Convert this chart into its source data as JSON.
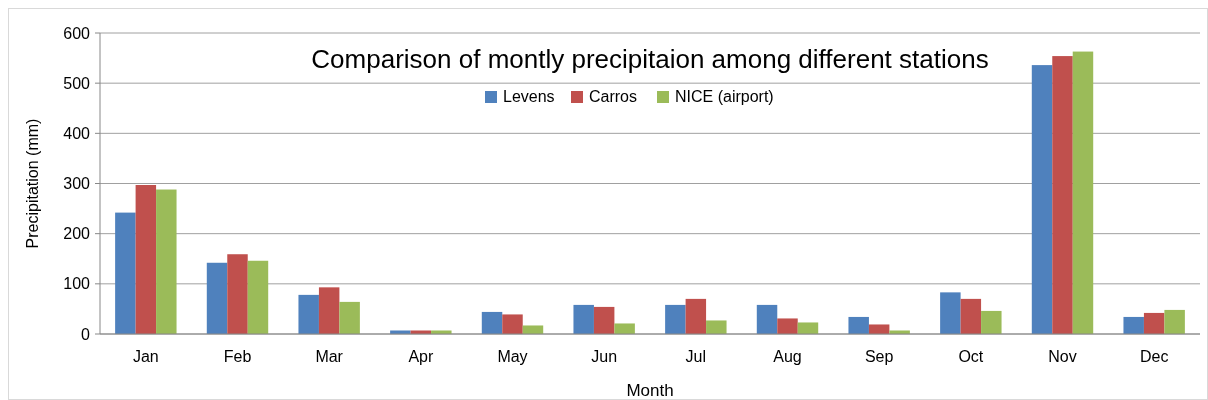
{
  "chart_data": {
    "type": "bar",
    "title": "Comparison of montly precipitaion among different stations",
    "xlabel": "Month",
    "ylabel": "Precipitation (mm)",
    "categories": [
      "Jan",
      "Feb",
      "Mar",
      "Apr",
      "May",
      "Jun",
      "Jul",
      "Aug",
      "Sep",
      "Oct",
      "Nov",
      "Dec"
    ],
    "series": [
      {
        "name": "Levens",
        "color": "#4f81bd",
        "values": [
          242,
          142,
          78,
          7,
          44,
          58,
          58,
          58,
          34,
          83,
          536,
          34
        ]
      },
      {
        "name": "Carros",
        "color": "#c0504d",
        "values": [
          297,
          159,
          93,
          7,
          39,
          54,
          70,
          31,
          19,
          70,
          554,
          42
        ]
      },
      {
        "name": "NICE (airport)",
        "color": "#9bbb59",
        "values": [
          288,
          146,
          64,
          7,
          17,
          21,
          27,
          23,
          7,
          46,
          563,
          48
        ]
      }
    ],
    "ylim": [
      0,
      600
    ],
    "yticks": [
      0,
      100,
      200,
      300,
      400,
      500,
      600
    ],
    "grid": "y",
    "legend": "top"
  }
}
